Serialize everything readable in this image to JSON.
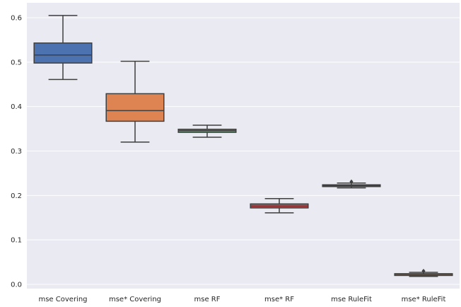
{
  "chart_data": {
    "type": "box",
    "categories": [
      "mse Covering",
      "mse* Covering",
      "mse RF",
      "mse* RF",
      "mse RuleFit",
      "mse* RuleFit"
    ],
    "boxes": [
      {
        "min": 0.461,
        "q1": 0.498,
        "median": 0.516,
        "q3": 0.543,
        "max": 0.605,
        "outliers": [],
        "color": "#4c72b0"
      },
      {
        "min": 0.32,
        "q1": 0.367,
        "median": 0.391,
        "q3": 0.429,
        "max": 0.502,
        "outliers": [],
        "color": "#dd8452"
      },
      {
        "min": 0.331,
        "q1": 0.342,
        "median": 0.346,
        "q3": 0.349,
        "max": 0.358,
        "outliers": [],
        "color": "#55a868"
      },
      {
        "min": 0.161,
        "q1": 0.172,
        "median": 0.176,
        "q3": 0.181,
        "max": 0.193,
        "outliers": [],
        "color": "#c44e52"
      },
      {
        "min": 0.217,
        "q1": 0.22,
        "median": 0.222,
        "q3": 0.224,
        "max": 0.228,
        "outliers": [
          0.231
        ],
        "color": "#8172b3"
      },
      {
        "min": 0.018,
        "q1": 0.021,
        "median": 0.023,
        "q3": 0.024,
        "max": 0.027,
        "outliers": [
          0.03
        ],
        "color": "#937860"
      }
    ],
    "y_ticks": [
      0.0,
      0.1,
      0.2,
      0.3,
      0.4,
      0.5,
      0.6
    ],
    "y_tick_labels": [
      "0.0",
      "0.1",
      "0.2",
      "0.3",
      "0.4",
      "0.5",
      "0.6"
    ],
    "ylim": [
      -0.01,
      0.63
    ],
    "grid": true,
    "background": "#eaeaf2",
    "title": "",
    "xlabel": "",
    "ylabel": ""
  }
}
